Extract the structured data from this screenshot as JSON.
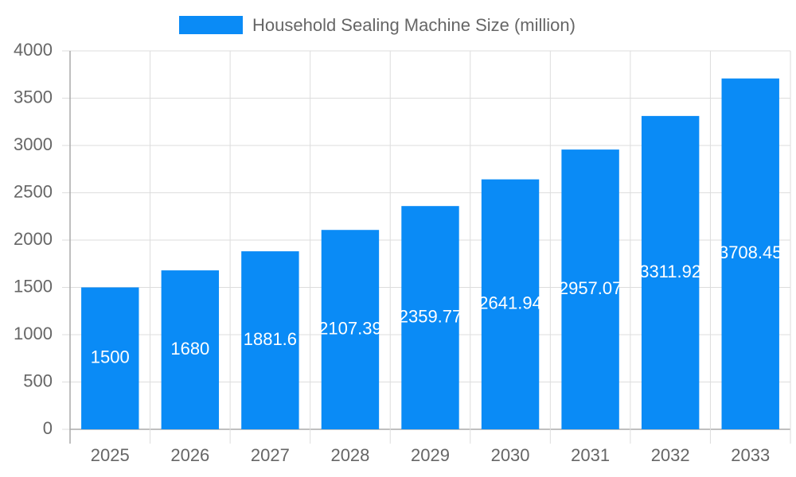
{
  "chart_data": {
    "type": "bar",
    "categories": [
      "2025",
      "2026",
      "2027",
      "2028",
      "2029",
      "2030",
      "2031",
      "2032",
      "2033"
    ],
    "series": [
      {
        "name": "Household Sealing Machine Size (million)",
        "color": "#0a8bf6",
        "values": [
          1500,
          1680,
          1881.6,
          2107.39,
          2359.77,
          2641.94,
          2957.07,
          3311.92,
          3708.45
        ]
      }
    ],
    "ylim": [
      0,
      4000
    ],
    "yticks": [
      0,
      500,
      1000,
      1500,
      2000,
      2500,
      3000,
      3500,
      4000
    ],
    "grid": true,
    "legend": "top",
    "data_labels": true
  }
}
